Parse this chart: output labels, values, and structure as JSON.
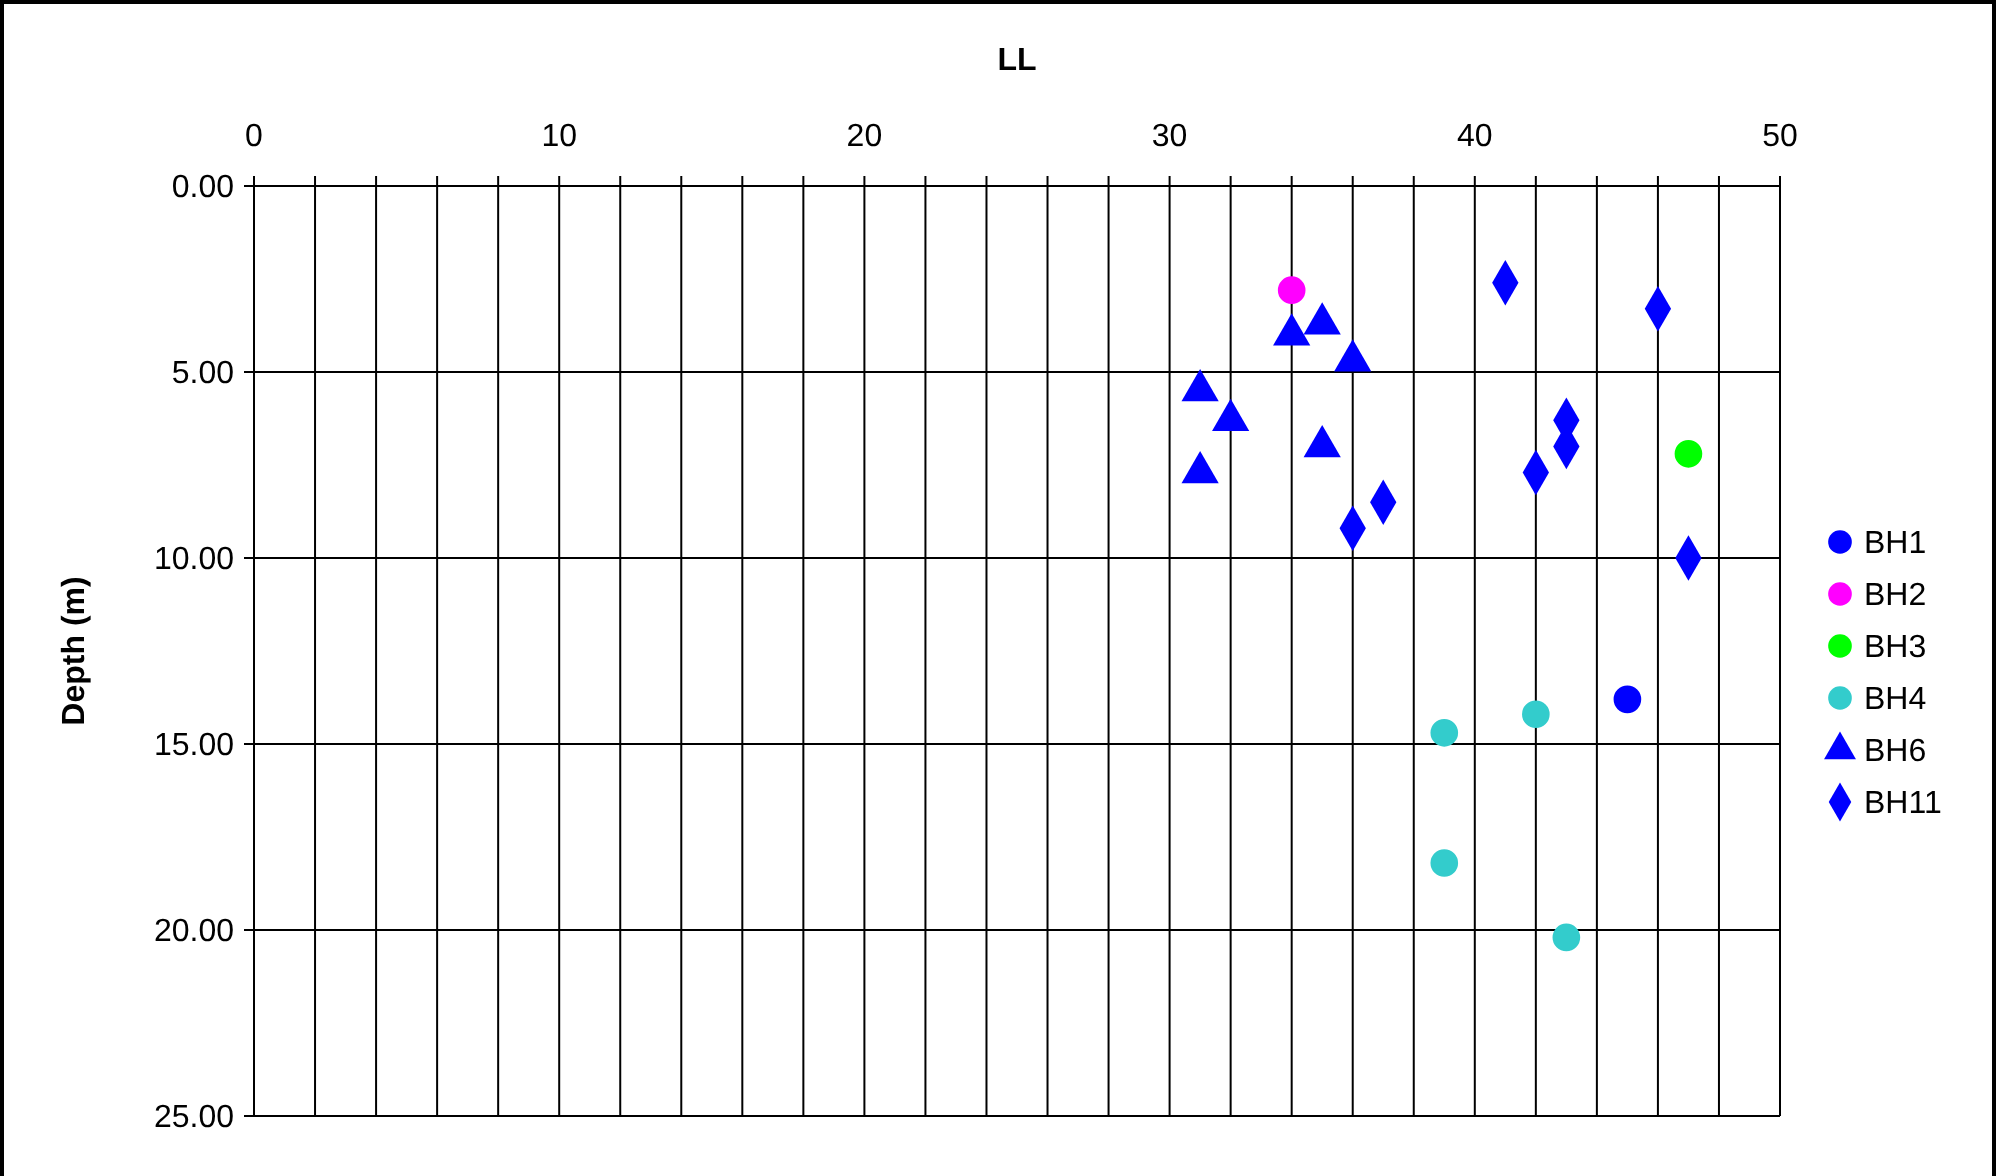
{
  "chart_data": {
    "type": "scatter",
    "xlabel": "LL",
    "ylabel": "Depth (m)",
    "xlim": [
      0,
      50
    ],
    "ylim": [
      25,
      0
    ],
    "xticks": [
      0,
      {
        "value": 2,
        "label": null
      },
      {
        "value": 4,
        "label": null
      },
      {
        "value": 6,
        "label": null
      },
      {
        "value": 8,
        "label": null
      },
      10,
      {
        "value": 12,
        "label": null
      },
      {
        "value": 14,
        "label": null
      },
      {
        "value": 16,
        "label": null
      },
      {
        "value": 18,
        "label": null
      },
      20,
      {
        "value": 22,
        "label": null
      },
      {
        "value": 24,
        "label": null
      },
      {
        "value": 26,
        "label": null
      },
      {
        "value": 28,
        "label": null
      },
      30,
      {
        "value": 32,
        "label": null
      },
      {
        "value": 34,
        "label": null
      },
      {
        "value": 36,
        "label": null
      },
      {
        "value": 38,
        "label": null
      },
      40,
      {
        "value": 42,
        "label": null
      },
      {
        "value": 44,
        "label": null
      },
      {
        "value": 46,
        "label": null
      },
      {
        "value": 48,
        "label": null
      },
      50
    ],
    "yticks": [
      {
        "value": 0,
        "label": "0.00"
      },
      {
        "value": 5,
        "label": "5.00"
      },
      {
        "value": 10,
        "label": "10.00"
      },
      {
        "value": 15,
        "label": "15.00"
      },
      {
        "value": 20,
        "label": "20.00"
      },
      {
        "value": 25,
        "label": "25.00"
      }
    ],
    "grid": true,
    "legend": "right",
    "series": [
      {
        "name": "BH1",
        "color": "#0000ff",
        "marker": "circle",
        "x": [
          45
        ],
        "values": [
          13.8
        ]
      },
      {
        "name": "BH2",
        "color": "#ff00ff",
        "marker": "circle",
        "x": [
          34
        ],
        "values": [
          2.8
        ]
      },
      {
        "name": "BH3",
        "color": "#00ff00",
        "marker": "circle",
        "x": [
          47
        ],
        "values": [
          7.2
        ]
      },
      {
        "name": "BH4",
        "color": "#33cccc",
        "marker": "circle",
        "x": [
          39,
          42,
          39,
          43
        ],
        "values": [
          14.7,
          14.2,
          18.2,
          20.2
        ]
      },
      {
        "name": "BH6",
        "color": "#0000ff",
        "marker": "triangle",
        "x": [
          34,
          35,
          36,
          31,
          32,
          35,
          31
        ],
        "values": [
          4.0,
          3.7,
          4.7,
          5.5,
          6.3,
          7.0,
          7.7
        ]
      },
      {
        "name": "BH11",
        "color": "#0000ff",
        "marker": "diamond",
        "x": [
          41,
          46,
          43,
          43,
          42,
          37,
          36,
          47
        ],
        "values": [
          2.6,
          3.3,
          6.3,
          7.0,
          7.7,
          8.5,
          9.2,
          10.0
        ]
      }
    ]
  }
}
